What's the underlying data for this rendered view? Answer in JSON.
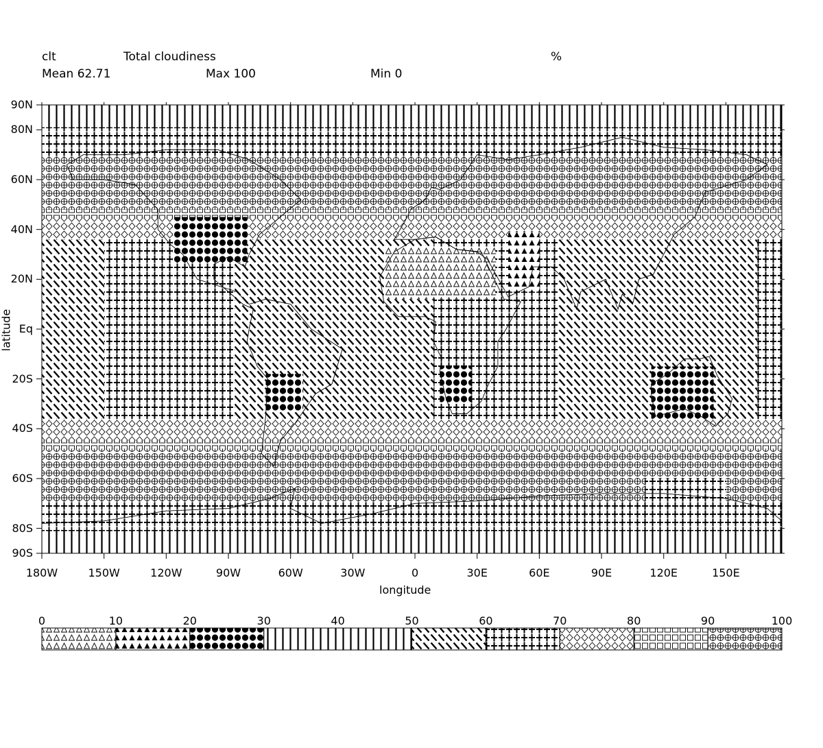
{
  "header": {
    "variable": "clt",
    "long_name": "Total cloudiness",
    "units": "%",
    "mean_label": "Mean 62.71",
    "max_label": "Max 100",
    "min_label": "Min 0"
  },
  "map": {
    "xlabel": "longitude",
    "ylabel": "latitude",
    "x_ticks": [
      "180W",
      "150W",
      "120W",
      "90W",
      "60W",
      "30W",
      "0",
      "30E",
      "60E",
      "90E",
      "120E",
      "150E"
    ],
    "y_ticks": [
      "90N",
      "80N",
      "60N",
      "40N",
      "20N",
      "Eq",
      "20S",
      "40S",
      "60S",
      "80S",
      "90S"
    ],
    "lon_range": [
      -180,
      177
    ],
    "lat_range": [
      -90,
      90
    ]
  },
  "colorbar": {
    "ticks": [
      "0",
      "10",
      "20",
      "30",
      "40",
      "50",
      "60",
      "70",
      "80",
      "90",
      "100"
    ],
    "levels": [
      {
        "from": 0,
        "to": 10,
        "pattern": "open-triangle"
      },
      {
        "from": 10,
        "to": 20,
        "pattern": "filled-triangle"
      },
      {
        "from": 20,
        "to": 30,
        "pattern": "filled-circle"
      },
      {
        "from": 30,
        "to": 50,
        "pattern": "vertical-line"
      },
      {
        "from": 50,
        "to": 60,
        "pattern": "diagonal-dash"
      },
      {
        "from": 60,
        "to": 70,
        "pattern": "plus"
      },
      {
        "from": 70,
        "to": 80,
        "pattern": "open-diamond"
      },
      {
        "from": 80,
        "to": 90,
        "pattern": "open-square"
      },
      {
        "from": 90,
        "to": 100,
        "pattern": "circle-plus"
      }
    ]
  },
  "chart_data": {
    "type": "heatmap",
    "title": "Total cloudiness",
    "variable": "clt",
    "units": "%",
    "mean": 62.71,
    "max": 100,
    "min": 0,
    "xlabel": "longitude",
    "ylabel": "latitude",
    "xlim": [
      -180,
      177
    ],
    "ylim": [
      -90,
      90
    ],
    "legend": "bottom",
    "color_levels": [
      0,
      10,
      20,
      30,
      40,
      50,
      60,
      70,
      80,
      90,
      100
    ]
  }
}
